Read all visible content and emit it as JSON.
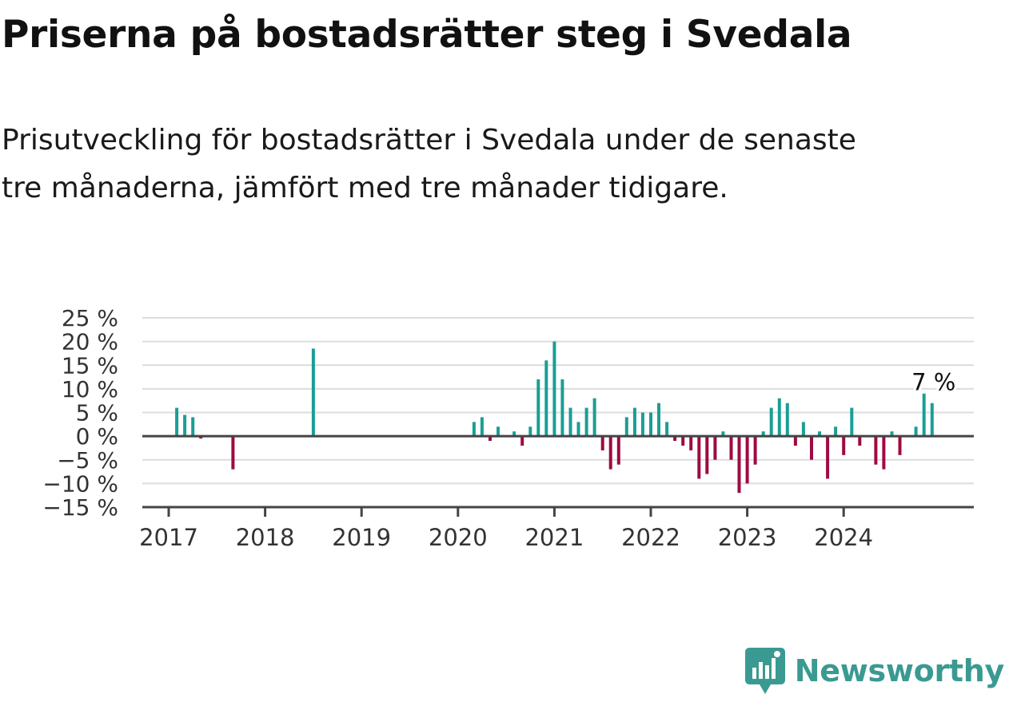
{
  "title": "Priserna på bostadsrätter steg i Svedala",
  "subtitle": "Prisutveckling för bostadsrätter i Svedala under de senaste tre månaderna, jämfört med tre månader tidigare.",
  "brand": {
    "name": "Newsworthy",
    "icon": "newsworthy-logo-icon",
    "color": "#3a9a92"
  },
  "chart_data": {
    "type": "bar",
    "x_start": "2017-01",
    "y_ticks": [
      "25 %",
      "20 %",
      "15 %",
      "10 %",
      "5 %",
      "0 %",
      "−5 %",
      "−10 %",
      "−15 %"
    ],
    "y_tick_values": [
      25,
      20,
      15,
      10,
      5,
      0,
      -5,
      -10,
      -15
    ],
    "x_ticks": [
      "2017",
      "2018",
      "2019",
      "2020",
      "2021",
      "2022",
      "2023",
      "2024"
    ],
    "ylim": [
      -15,
      25
    ],
    "grid": true,
    "colors": {
      "positive": "#1a9e96",
      "negative": "#9e0a42",
      "grid": "#dcdcdc",
      "axis": "#444444"
    },
    "last_label": "7 %",
    "values": [
      null,
      6,
      4.5,
      4,
      -0.5,
      null,
      null,
      null,
      -7,
      null,
      null,
      null,
      null,
      null,
      null,
      null,
      null,
      null,
      18.5,
      null,
      null,
      null,
      null,
      null,
      null,
      null,
      null,
      null,
      null,
      null,
      null,
      null,
      null,
      null,
      null,
      null,
      null,
      null,
      3,
      4,
      -1,
      2,
      null,
      1,
      -2,
      2,
      12,
      16,
      20,
      12,
      6,
      3,
      6,
      8,
      -3,
      -7,
      -6,
      4,
      6,
      5,
      5,
      7,
      3,
      -1,
      -2,
      -3,
      -9,
      -8,
      -5,
      1,
      -5,
      -12,
      -10,
      -6,
      1,
      6,
      8,
      7,
      -2,
      3,
      -5,
      1,
      -9,
      2,
      -4,
      6,
      -2,
      null,
      -6,
      -7,
      1,
      -4,
      null,
      2,
      9,
      7
    ]
  }
}
